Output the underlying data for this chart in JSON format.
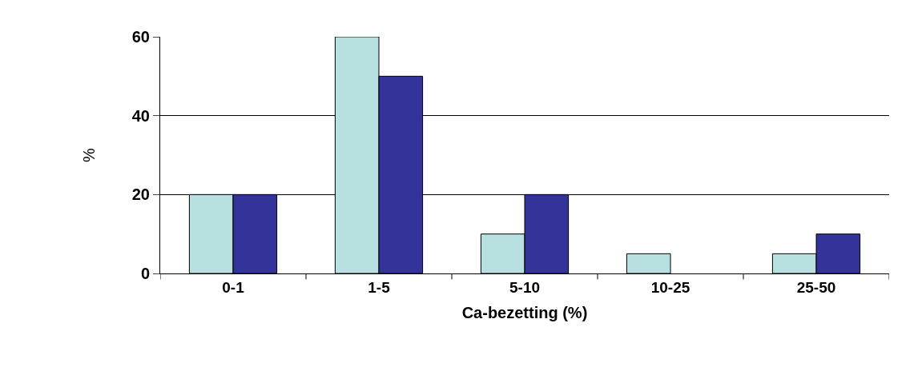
{
  "chart_data": {
    "type": "bar",
    "xlabel": "Ca-bezetting (%)",
    "ylabel": "%",
    "categories": [
      "0-1",
      "1-5",
      "5-10",
      "10-25",
      "25-50"
    ],
    "series": [
      {
        "color": "#b8e0e0",
        "values": [
          20,
          60,
          10,
          5,
          5
        ]
      },
      {
        "color": "#333399",
        "values": [
          20,
          50,
          20,
          0,
          10
        ]
      }
    ],
    "ylim": [
      0,
      60
    ],
    "yticks": [
      0,
      20,
      40,
      60
    ],
    "grid": "y"
  }
}
